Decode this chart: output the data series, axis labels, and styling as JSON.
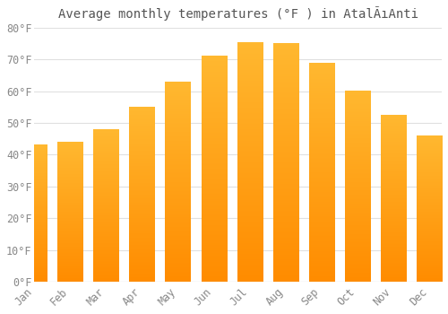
{
  "title": "Average monthly temperatures (°F ) in AtalÃıAnti",
  "months": [
    "Jan",
    "Feb",
    "Mar",
    "Apr",
    "May",
    "Jun",
    "Jul",
    "Aug",
    "Sep",
    "Oct",
    "Nov",
    "Dec"
  ],
  "values": [
    43,
    44,
    48,
    55,
    63,
    71,
    75.5,
    75,
    69,
    60,
    52.5,
    46
  ],
  "bar_color_top": "#FFB830",
  "bar_color_bottom": "#FF8C00",
  "background_color": "#FFFFFF",
  "grid_color": "#E0E0E0",
  "ylim": [
    0,
    80
  ],
  "yticks": [
    0,
    10,
    20,
    30,
    40,
    50,
    60,
    70,
    80
  ],
  "title_fontsize": 10,
  "tick_fontsize": 8.5,
  "figsize": [
    5.0,
    3.5
  ],
  "dpi": 100
}
